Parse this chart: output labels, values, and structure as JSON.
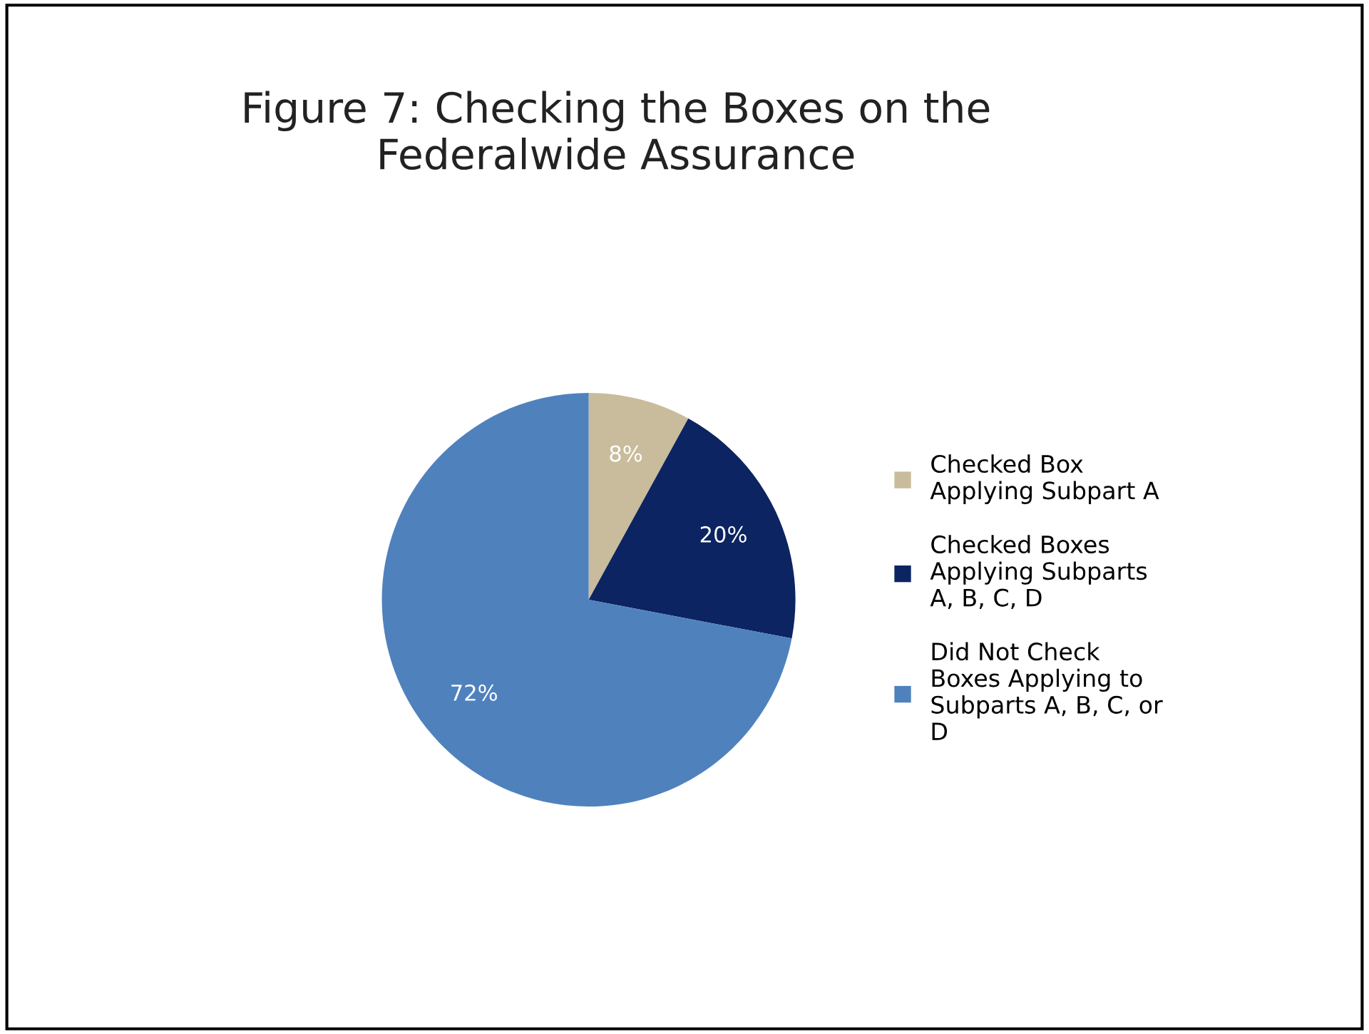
{
  "chart_data": {
    "type": "pie",
    "title": "Figure 7: Checking the Boxes on the\nFederalwide Assurance",
    "categories": [
      "Checked Box\nApplying Subpart A",
      "Checked Boxes\nApplying Subparts\nA, B, C, D",
      "Did Not Check\nBoxes Applying to\nSubparts A, B, C, or\nD"
    ],
    "values": [
      8,
      20,
      72
    ],
    "value_labels": [
      "8%",
      "20%",
      "72%"
    ],
    "colors": [
      "#c9bc9c",
      "#0c2461",
      "#4f81bd"
    ],
    "legend": "right"
  }
}
